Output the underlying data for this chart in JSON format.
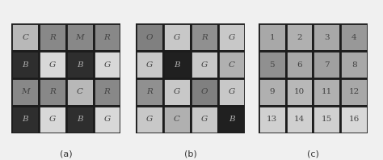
{
  "grid_a": {
    "labels": [
      [
        "C",
        "R",
        "M",
        "R"
      ],
      [
        "B",
        "G",
        "B",
        "G"
      ],
      [
        "M",
        "R",
        "C",
        "R"
      ],
      [
        "B",
        "G",
        "B",
        "G"
      ]
    ],
    "color_map": {
      "C": "#b8b8b8",
      "R": "#888888",
      "M": "#888888",
      "B": "#2e2e2e",
      "G": "#d8d8d8"
    },
    "label": "(a)"
  },
  "grid_b": {
    "labels": [
      [
        "O",
        "G",
        "R",
        "G"
      ],
      [
        "G",
        "B",
        "G",
        "C"
      ],
      [
        "R",
        "G",
        "O",
        "G"
      ],
      [
        "G",
        "C",
        "G",
        "B"
      ]
    ],
    "color_map": {
      "O": "#808080",
      "G": "#c8c8c8",
      "R": "#909090",
      "B": "#202020",
      "C": "#b0b0b0"
    },
    "label": "(b)"
  },
  "grid_c": {
    "labels": [
      [
        "1",
        "2",
        "3",
        "4"
      ],
      [
        "5",
        "6",
        "7",
        "8"
      ],
      [
        "9",
        "10",
        "11",
        "12"
      ],
      [
        "13",
        "14",
        "15",
        "16"
      ]
    ],
    "colors": [
      [
        "#a8a8a8",
        "#b0b0b0",
        "#a8a8a8",
        "#989898"
      ],
      [
        "#909090",
        "#a8a8a8",
        "#a0a0a0",
        "#a8a8a8"
      ],
      [
        "#b0b0b0",
        "#b8b8b8",
        "#b0b0b0",
        "#a8a8a8"
      ],
      [
        "#d0d0d0",
        "#d0d0d0",
        "#d0d0d0",
        "#d8d8d8"
      ]
    ],
    "label": "(c)"
  },
  "border_color": "#1c1c1c",
  "border_width": 2.0,
  "background_color": "#f0f0f0",
  "text_color_dark": "#444444",
  "text_color_light": "#aaaaaa",
  "label_fontsize": 8,
  "cell_fontsize": 7.5,
  "fig_width": 4.74,
  "fig_height": 1.98,
  "dpi": 100
}
